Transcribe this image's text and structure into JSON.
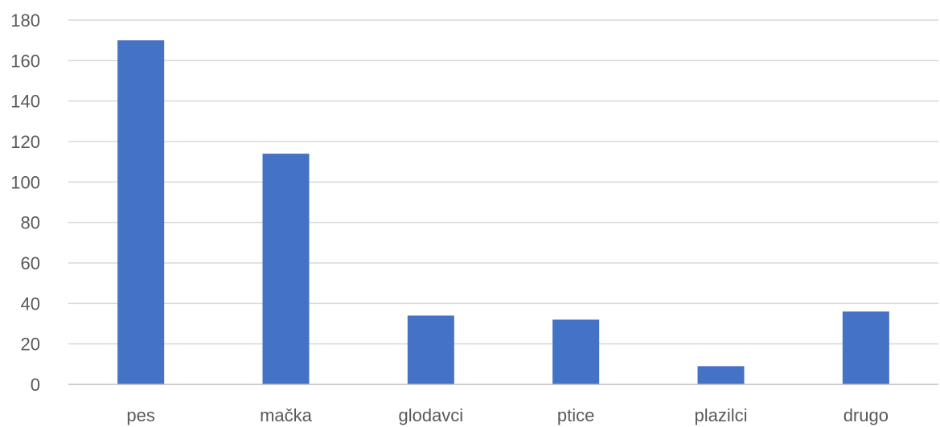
{
  "chart_data": {
    "type": "bar",
    "title": "",
    "xlabel": "",
    "ylabel": "",
    "categories": [
      "pes",
      "mačka",
      "glodavci",
      "ptice",
      "plazilci",
      "drugo"
    ],
    "values": [
      170,
      114,
      34,
      32,
      9,
      36
    ],
    "ylim": [
      0,
      180
    ],
    "yticks": [
      0,
      20,
      40,
      60,
      80,
      100,
      120,
      140,
      160,
      180
    ],
    "grid": true,
    "legend": "none",
    "bar_color": "#4472c4"
  }
}
